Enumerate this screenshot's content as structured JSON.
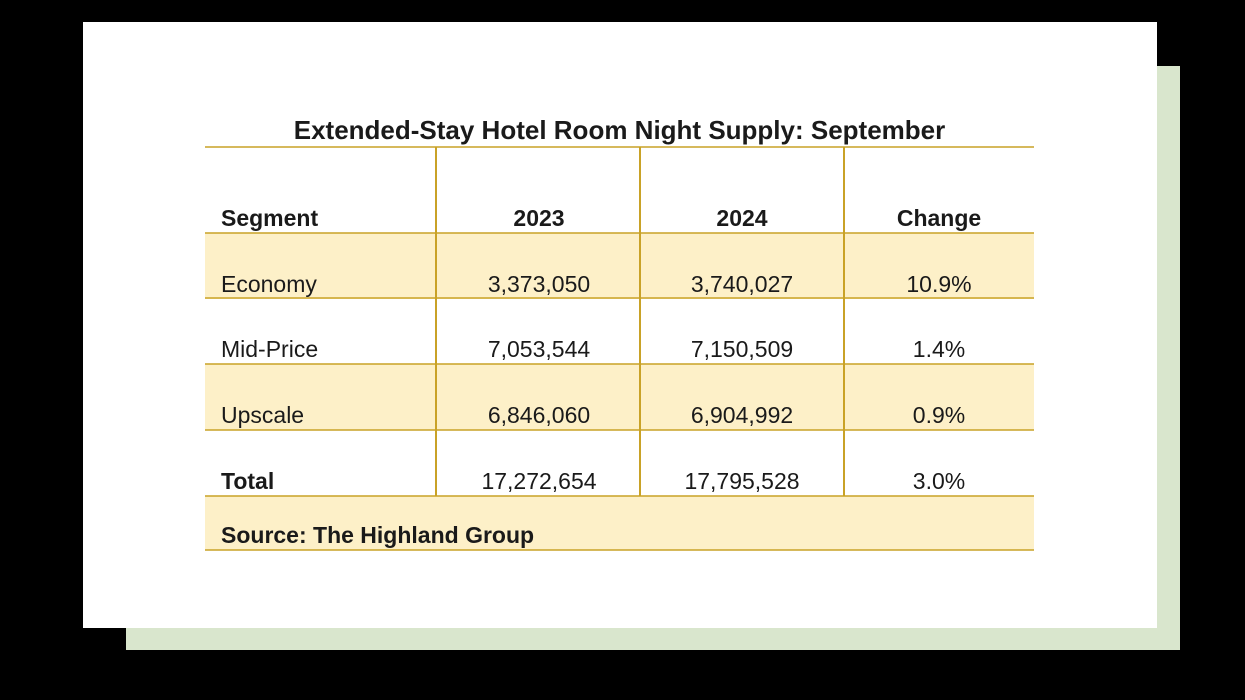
{
  "chart_data": {
    "type": "table",
    "title": "Extended-Stay Hotel Room Night Supply: September",
    "columns": [
      "Segment",
      "2023",
      "2024",
      "Change"
    ],
    "rows": [
      {
        "segment": "Economy",
        "y2023": "3,373,050",
        "y2024": "3,740,027",
        "change": "10.9%"
      },
      {
        "segment": "Mid-Price",
        "y2023": "7,053,544",
        "y2024": "7,150,509",
        "change": "1.4%"
      },
      {
        "segment": "Upscale",
        "y2023": "6,846,060",
        "y2024": "6,904,992",
        "change": "0.9%"
      },
      {
        "segment": "Total",
        "y2023": "17,272,654",
        "y2024": "17,795,528",
        "change": "3.0%"
      }
    ],
    "source": "Source: The Highland Group",
    "colors": {
      "band": "#fdf0c8",
      "line": "#c9a227",
      "background_shadow": "#d9e6cd"
    }
  }
}
